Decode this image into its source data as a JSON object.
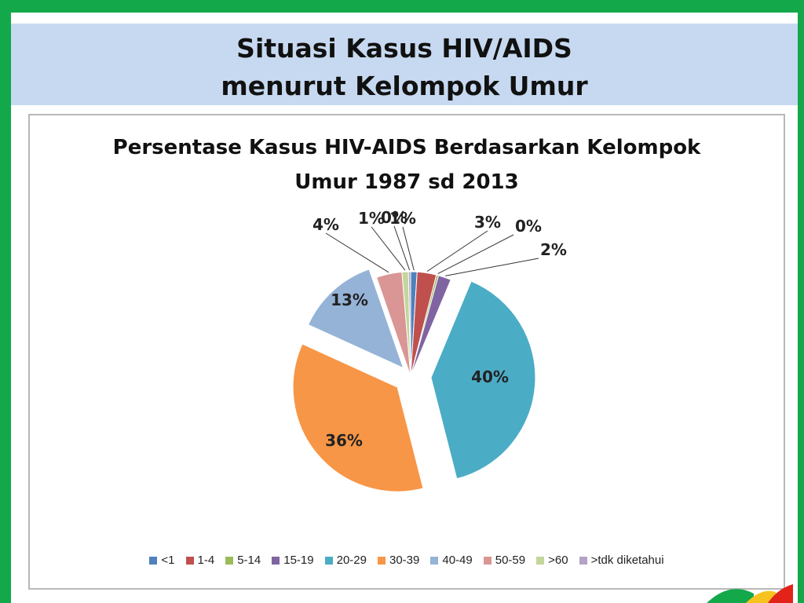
{
  "slide": {
    "title_line1": "Situasi Kasus HIV/AIDS",
    "title_line2": "menurut Kelompok Umur"
  },
  "colors": {
    "accent_green": "#13a84a",
    "title_band": "#c6d9f0"
  },
  "chart_data": {
    "type": "pie",
    "title_line1": "Persentase Kasus HIV-AIDS Berdasarkan Kelompok",
    "title_line2": "Umur 1987 sd 2013",
    "slices": [
      {
        "label": "<1",
        "value": 1,
        "display": "1%",
        "color": "#4f81bd"
      },
      {
        "label": "1-4",
        "value": 3,
        "display": "3%",
        "color": "#c0504d"
      },
      {
        "label": "5-14",
        "value": 0,
        "display": "0%",
        "color": "#9bbb59"
      },
      {
        "label": "15-19",
        "value": 2,
        "display": "2%",
        "color": "#8064a2"
      },
      {
        "label": "20-29",
        "value": 40,
        "display": "40%",
        "color": "#4bacc6"
      },
      {
        "label": "30-39",
        "value": 36,
        "display": "36%",
        "color": "#f79646"
      },
      {
        "label": "40-49",
        "value": 13,
        "display": "13%",
        "color": "#95b3d7"
      },
      {
        "label": "50-59",
        "value": 4,
        "display": "4%",
        "color": "#d99694"
      },
      {
        "label": ">60",
        "value": 1,
        "display": "1%",
        "color": "#c3d69b"
      },
      {
        "label": ">tdk diketahui",
        "value": 0,
        "display": "0%",
        "color": "#b3a2c7"
      }
    ],
    "legend_position": "bottom"
  }
}
